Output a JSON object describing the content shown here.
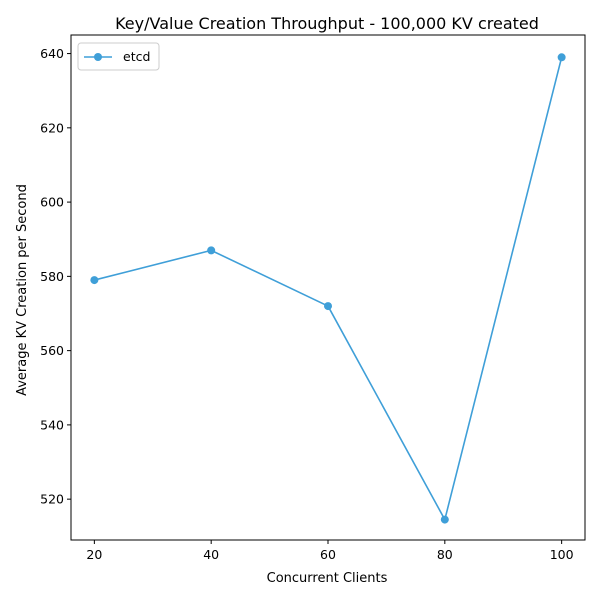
{
  "chart_data": {
    "type": "line",
    "title": "Key/Value Creation Throughput - 100,000 KV created",
    "xlabel": "Concurrent Clients",
    "ylabel": "Average KV Creation per Second",
    "x": [
      20,
      40,
      60,
      80,
      100
    ],
    "xticks": [
      "20",
      "40",
      "60",
      "80",
      "100"
    ],
    "yticks": [
      "520",
      "540",
      "560",
      "580",
      "600",
      "620",
      "640"
    ],
    "xlim": [
      16,
      104
    ],
    "ylim": [
      509,
      645
    ],
    "grid": false,
    "legend_position": "top-left",
    "series": [
      {
        "name": "etcd",
        "color": "#3f9fd8",
        "values": [
          579,
          587,
          572,
          514.5,
          639
        ]
      }
    ]
  }
}
